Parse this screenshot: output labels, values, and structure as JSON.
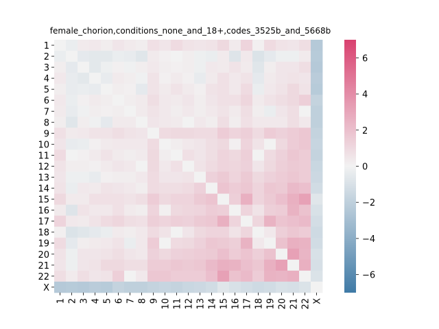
{
  "chart_data": {
    "type": "heatmap",
    "title": "female_chorion,conditions_none_and_18+,codes_3525b_and_5668b",
    "xlabel": "",
    "ylabel": "",
    "categories": [
      "1",
      "2",
      "3",
      "4",
      "5",
      "6",
      "7",
      "8",
      "9",
      "10",
      "11",
      "12",
      "13",
      "14",
      "15",
      "16",
      "17",
      "18",
      "19",
      "20",
      "21",
      "22",
      "X"
    ],
    "colorbar": {
      "min": -7,
      "max": 7,
      "ticks": [
        -6,
        -4,
        -2,
        0,
        2,
        4,
        6
      ],
      "tick_labels": [
        "−6",
        "−4",
        "−2",
        "0",
        "2",
        "4",
        "6"
      ]
    },
    "colors": {
      "low": "#3f7aa6",
      "mid": "#f2f2f2",
      "high": "#d9416f"
    },
    "grid": false,
    "legend": "colorbar-right",
    "values": [
      [
        0.0,
        -0.3,
        0.3,
        0.4,
        0.2,
        0.5,
        0.3,
        0.2,
        0.7,
        0.5,
        0.9,
        0.6,
        0.5,
        0.6,
        1.0,
        0.3,
        1.2,
        0.1,
        0.9,
        0.6,
        0.5,
        0.8,
        -2.4
      ],
      [
        -0.3,
        0.0,
        -0.5,
        -0.6,
        -0.6,
        -0.3,
        -0.4,
        -0.7,
        0.3,
        0.1,
        0.0,
        0.2,
        -0.2,
        -0.3,
        0.3,
        -0.8,
        0.4,
        -0.9,
        -0.5,
        -0.2,
        -0.2,
        0.3,
        -2.3
      ],
      [
        0.2,
        -0.5,
        0.0,
        -0.6,
        -0.2,
        0.1,
        -0.1,
        0.2,
        0.4,
        0.2,
        0.1,
        0.2,
        -0.2,
        0.4,
        0.3,
        0.6,
        0.3,
        -0.7,
        0.2,
        0.5,
        0.5,
        0.8,
        -2.4
      ],
      [
        0.4,
        -0.4,
        -0.6,
        0.0,
        -0.4,
        0.3,
        0.2,
        -0.1,
        0.6,
        0.1,
        0.3,
        0.1,
        -0.4,
        0.3,
        0.7,
        0.4,
        0.6,
        -0.5,
        0.3,
        0.5,
        0.6,
        0.5,
        -2.2
      ],
      [
        0.2,
        -0.4,
        -0.3,
        -0.4,
        0.0,
        0.2,
        0.1,
        -0.5,
        0.6,
        0.3,
        0.6,
        0.3,
        0.1,
        0.6,
        0.7,
        0.4,
        0.9,
        -0.3,
        0.4,
        0.6,
        1.0,
        0.6,
        -2.3
      ],
      [
        0.4,
        -0.3,
        0.1,
        0.3,
        0.2,
        0.0,
        0.2,
        0.3,
        0.8,
        0.4,
        0.3,
        0.5,
        0.2,
        0.5,
        0.7,
        0.7,
        1.1,
        0.3,
        0.6,
        0.8,
        1.0,
        1.4,
        -1.8
      ],
      [
        0.3,
        -0.4,
        -0.1,
        0.2,
        0.1,
        0.2,
        0.0,
        0.3,
        0.6,
        0.4,
        0.2,
        0.4,
        0.2,
        0.4,
        0.6,
        0.3,
        0.8,
        0.2,
        -0.3,
        0.5,
        0.8,
        0.0,
        -2.0
      ],
      [
        0.2,
        -0.7,
        0.2,
        -0.1,
        -0.5,
        0.3,
        0.3,
        0.0,
        0.5,
        0.4,
        0.3,
        0.0,
        0.4,
        0.2,
        0.8,
        0.2,
        0.7,
        0.4,
        0.4,
        0.4,
        0.8,
        0.4,
        -2.0
      ],
      [
        0.7,
        0.3,
        0.4,
        0.6,
        0.6,
        0.8,
        0.6,
        0.5,
        0.0,
        0.9,
        1.0,
        1.0,
        0.9,
        0.9,
        1.5,
        1.2,
        1.4,
        0.9,
        1.5,
        1.3,
        1.5,
        1.7,
        -1.8
      ],
      [
        0.5,
        -0.4,
        -0.3,
        0.1,
        0.3,
        0.4,
        0.4,
        0.4,
        0.9,
        0.0,
        0.2,
        0.4,
        0.5,
        0.8,
        1.0,
        0.1,
        1.2,
        0.6,
        0.0,
        1.0,
        1.5,
        1.7,
        -1.7
      ],
      [
        0.9,
        0.0,
        0.1,
        0.3,
        0.6,
        0.3,
        0.2,
        0.3,
        1.0,
        0.2,
        0.0,
        0.7,
        0.5,
        0.8,
        1.2,
        1.0,
        1.4,
        0.0,
        0.9,
        1.3,
        1.7,
        1.5,
        -1.8
      ],
      [
        0.6,
        0.2,
        0.2,
        0.1,
        0.3,
        0.5,
        0.4,
        0.0,
        1.0,
        0.4,
        0.7,
        0.0,
        0.6,
        0.9,
        1.2,
        1.1,
        1.3,
        0.5,
        1.0,
        1.4,
        1.6,
        1.5,
        -1.6
      ],
      [
        0.5,
        -0.2,
        -0.2,
        -0.4,
        0.1,
        0.2,
        0.2,
        0.4,
        0.9,
        0.5,
        0.5,
        0.6,
        0.0,
        1.3,
        1.6,
        1.2,
        1.6,
        1.0,
        1.3,
        1.5,
        1.7,
        1.5,
        -1.5
      ],
      [
        0.6,
        -0.3,
        0.4,
        0.3,
        0.6,
        0.5,
        0.4,
        0.2,
        0.9,
        0.8,
        0.8,
        0.9,
        1.3,
        0.0,
        1.8,
        1.5,
        1.7,
        1.2,
        1.7,
        1.6,
        2.2,
        2.0,
        -1.3
      ],
      [
        1.0,
        0.3,
        0.3,
        0.7,
        0.7,
        0.7,
        0.6,
        0.8,
        1.5,
        1.0,
        1.2,
        1.2,
        1.6,
        1.8,
        0.0,
        1.4,
        2.6,
        1.2,
        1.6,
        2.0,
        2.6,
        3.2,
        -0.7
      ],
      [
        0.3,
        -0.8,
        0.6,
        0.4,
        0.4,
        0.7,
        0.3,
        0.2,
        1.2,
        0.1,
        1.0,
        1.1,
        1.2,
        1.5,
        1.4,
        0.0,
        1.2,
        0.6,
        1.4,
        1.5,
        2.5,
        1.9,
        -1.0
      ],
      [
        1.2,
        0.4,
        0.3,
        0.6,
        0.9,
        1.1,
        0.8,
        0.7,
        1.4,
        1.2,
        1.4,
        1.3,
        1.6,
        1.7,
        2.6,
        1.2,
        0.0,
        1.1,
        2.5,
        1.8,
        2.0,
        2.2,
        -1.2
      ],
      [
        0.1,
        -0.9,
        -0.7,
        -0.5,
        -0.3,
        0.3,
        0.2,
        0.4,
        0.9,
        0.6,
        0.0,
        0.5,
        1.0,
        1.2,
        1.2,
        0.6,
        1.1,
        0.0,
        0.4,
        1.4,
        1.7,
        1.5,
        -1.4
      ],
      [
        0.9,
        -0.5,
        0.2,
        0.3,
        0.4,
        0.6,
        -0.3,
        0.4,
        1.5,
        0.0,
        0.9,
        1.0,
        1.3,
        1.7,
        1.6,
        1.4,
        2.5,
        0.4,
        0.0,
        1.9,
        2.6,
        2.5,
        -1.3
      ],
      [
        0.6,
        -0.2,
        0.5,
        0.5,
        0.6,
        0.8,
        0.5,
        0.4,
        1.3,
        1.0,
        1.3,
        1.4,
        1.5,
        1.6,
        2.0,
        1.5,
        1.8,
        1.4,
        1.9,
        0.0,
        3.2,
        2.4,
        -1.0
      ],
      [
        0.5,
        -0.2,
        0.5,
        0.6,
        1.0,
        1.0,
        0.8,
        0.8,
        1.5,
        1.5,
        1.7,
        1.6,
        1.7,
        2.2,
        2.6,
        2.5,
        2.0,
        1.7,
        2.6,
        3.2,
        0.0,
        2.6,
        -1.1
      ],
      [
        0.8,
        0.3,
        0.8,
        0.5,
        0.6,
        1.4,
        0.0,
        0.4,
        1.7,
        1.7,
        1.5,
        1.5,
        1.5,
        2.0,
        3.2,
        1.9,
        2.2,
        1.5,
        2.5,
        2.4,
        2.6,
        0.0,
        -0.9
      ],
      [
        -2.4,
        -2.3,
        -2.4,
        -2.2,
        -2.3,
        -1.8,
        -2.0,
        -2.0,
        -1.8,
        -1.7,
        -1.8,
        -1.6,
        -1.5,
        -1.3,
        -0.7,
        -1.0,
        -1.2,
        -1.4,
        -1.3,
        -1.0,
        -1.1,
        -0.9,
        0.0
      ]
    ]
  }
}
